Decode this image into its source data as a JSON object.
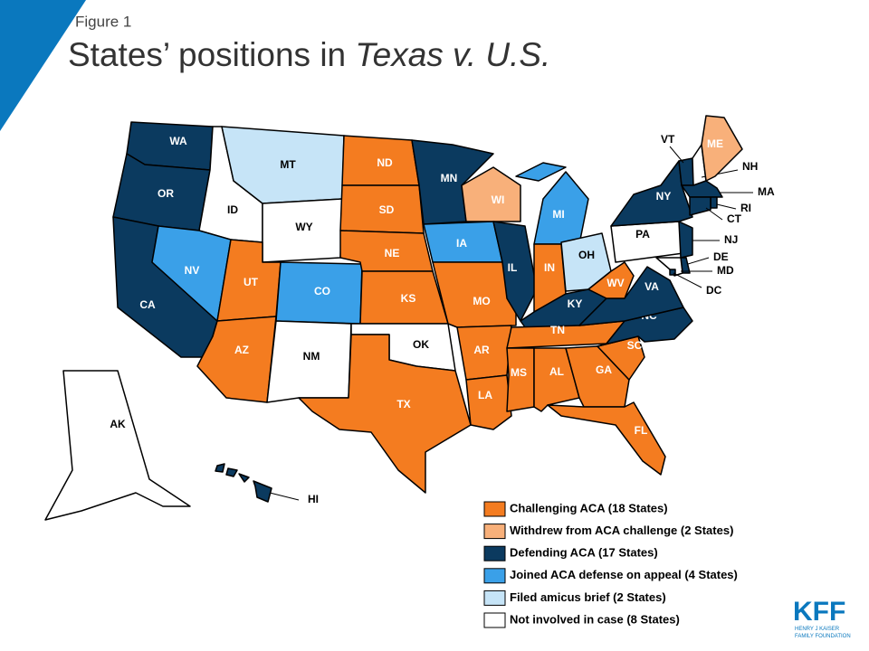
{
  "figure_label": "Figure 1",
  "title": {
    "prefix": "States’ positions in ",
    "italic": "Texas v. U.S."
  },
  "legend": [
    {
      "label": "Challenging ACA  (18 States)",
      "color": "#f47c20"
    },
    {
      "label": "Withdrew from ACA  challenge (2 States)",
      "color": "#f8b07a"
    },
    {
      "label": "Defending ACA (17 States)",
      "color": "#0b3a5f"
    },
    {
      "label": "Joined ACA  defense on appeal (4 States)",
      "color": "#3aa0e8"
    },
    {
      "label": "Filed amicus  brief (2 States)",
      "color": "#c6e4f7"
    },
    {
      "label": "Not involved in case (8 States)",
      "color": "#ffffff"
    }
  ],
  "states": [
    {
      "abbr": "WA",
      "color": "#0b3a5f"
    },
    {
      "abbr": "OR",
      "color": "#0b3a5f"
    },
    {
      "abbr": "CA",
      "color": "#0b3a5f"
    },
    {
      "abbr": "ID",
      "color": "#ffffff"
    },
    {
      "abbr": "NV",
      "color": "#3aa0e8"
    },
    {
      "abbr": "MT",
      "color": "#c6e4f7"
    },
    {
      "abbr": "WY",
      "color": "#ffffff"
    },
    {
      "abbr": "UT",
      "color": "#f47c20"
    },
    {
      "abbr": "CO",
      "color": "#3aa0e8"
    },
    {
      "abbr": "AZ",
      "color": "#f47c20"
    },
    {
      "abbr": "NM",
      "color": "#ffffff"
    },
    {
      "abbr": "ND",
      "color": "#f47c20"
    },
    {
      "abbr": "SD",
      "color": "#f47c20"
    },
    {
      "abbr": "NE",
      "color": "#f47c20"
    },
    {
      "abbr": "KS",
      "color": "#f47c20"
    },
    {
      "abbr": "OK",
      "color": "#ffffff"
    },
    {
      "abbr": "TX",
      "color": "#f47c20"
    },
    {
      "abbr": "MN",
      "color": "#0b3a5f"
    },
    {
      "abbr": "IA",
      "color": "#3aa0e8"
    },
    {
      "abbr": "MO",
      "color": "#f47c20"
    },
    {
      "abbr": "AR",
      "color": "#f47c20"
    },
    {
      "abbr": "LA",
      "color": "#f47c20"
    },
    {
      "abbr": "WI",
      "color": "#f8b07a"
    },
    {
      "abbr": "IL",
      "color": "#0b3a5f"
    },
    {
      "abbr": "MI",
      "color": "#3aa0e8"
    },
    {
      "abbr": "IN",
      "color": "#f47c20"
    },
    {
      "abbr": "OH",
      "color": "#c6e4f7"
    },
    {
      "abbr": "KY",
      "color": "#0b3a5f"
    },
    {
      "abbr": "TN",
      "color": "#f47c20"
    },
    {
      "abbr": "MS",
      "color": "#f47c20"
    },
    {
      "abbr": "AL",
      "color": "#f47c20"
    },
    {
      "abbr": "GA",
      "color": "#f47c20"
    },
    {
      "abbr": "FL",
      "color": "#f47c20"
    },
    {
      "abbr": "SC",
      "color": "#f47c20"
    },
    {
      "abbr": "NC",
      "color": "#0b3a5f"
    },
    {
      "abbr": "VA",
      "color": "#0b3a5f"
    },
    {
      "abbr": "WV",
      "color": "#f47c20"
    },
    {
      "abbr": "PA",
      "color": "#ffffff"
    },
    {
      "abbr": "NY",
      "color": "#0b3a5f"
    },
    {
      "abbr": "VT",
      "color": "#0b3a5f"
    },
    {
      "abbr": "NH",
      "color": "#ffffff"
    },
    {
      "abbr": "ME",
      "color": "#f8b07a"
    },
    {
      "abbr": "MA",
      "color": "#0b3a5f"
    },
    {
      "abbr": "RI",
      "color": "#0b3a5f"
    },
    {
      "abbr": "CT",
      "color": "#0b3a5f"
    },
    {
      "abbr": "NJ",
      "color": "#0b3a5f"
    },
    {
      "abbr": "DE",
      "color": "#0b3a5f"
    },
    {
      "abbr": "MD",
      "color": "#ffffff"
    },
    {
      "abbr": "DC",
      "color": "#0b3a5f"
    },
    {
      "abbr": "AK",
      "color": "#ffffff"
    },
    {
      "abbr": "HI",
      "color": "#0b3a5f"
    }
  ],
  "logo": {
    "name": "KFF",
    "line1": "HENRY J KAISER",
    "line2": "FAMILY FOUNDATION"
  }
}
